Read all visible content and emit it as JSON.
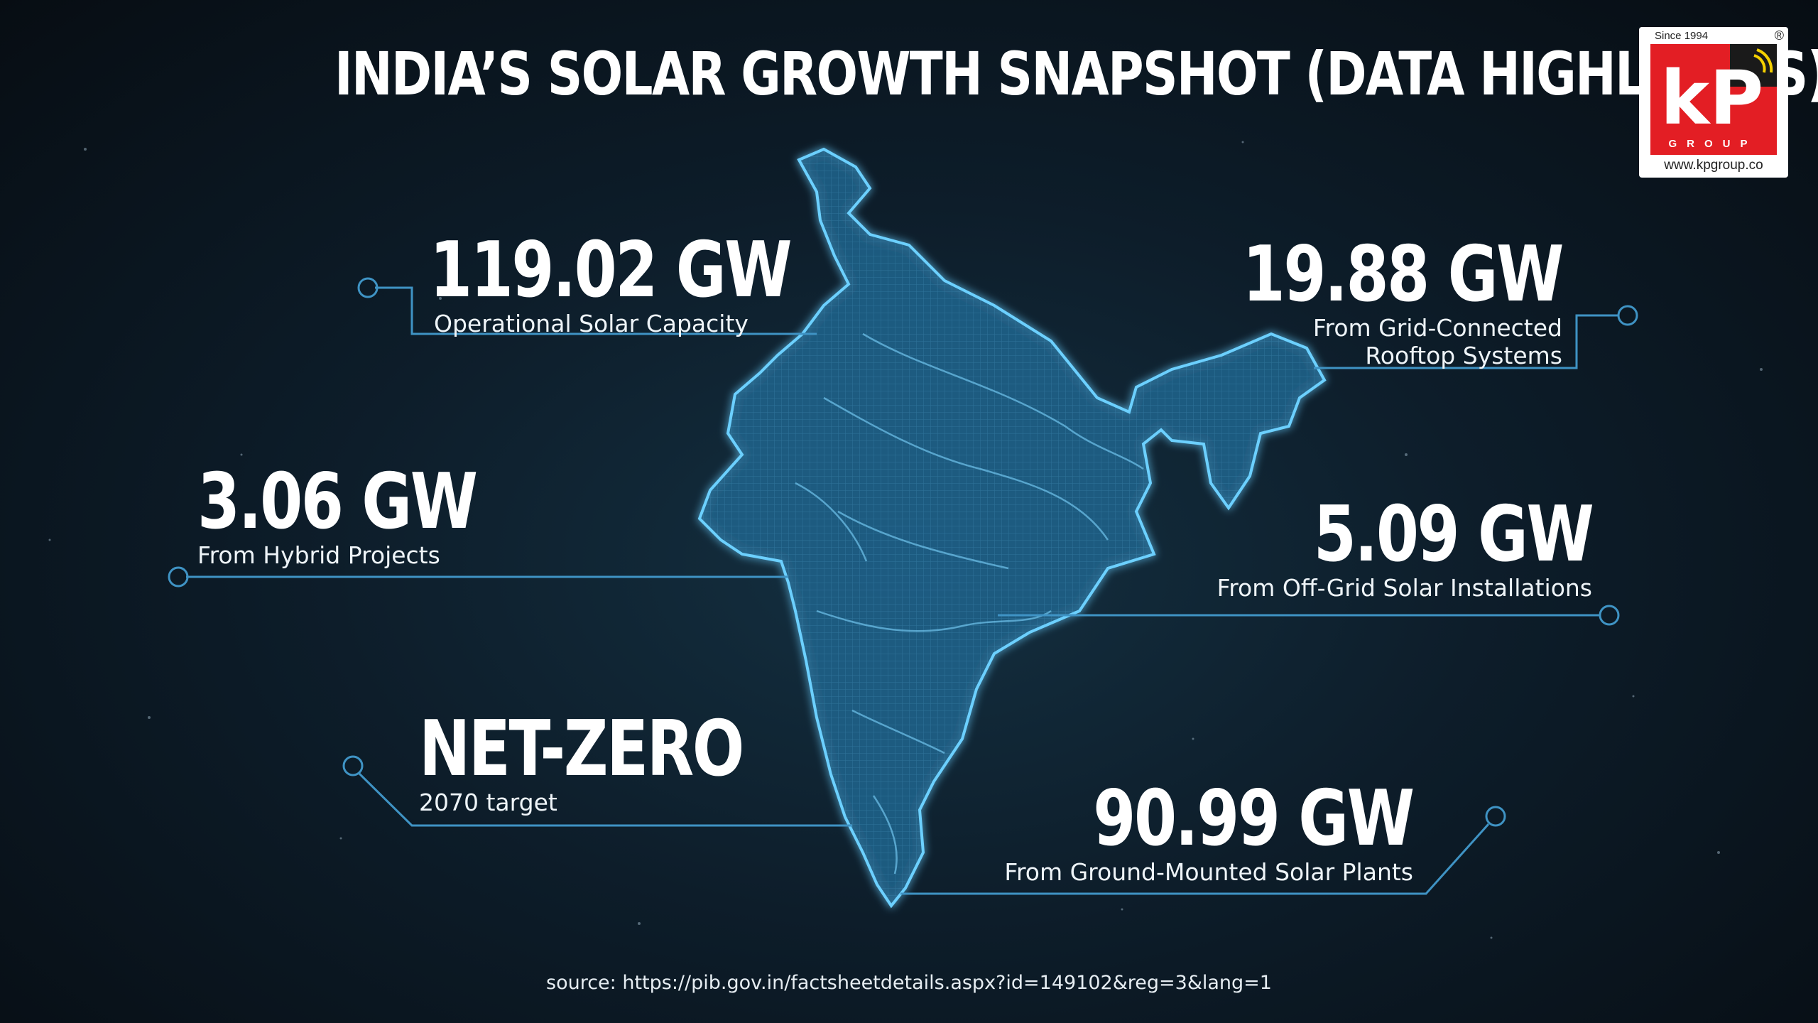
{
  "title": "INDIA’S SOLAR GROWTH SNAPSHOT (DATA HIGHLIGHTS)",
  "stats": [
    {
      "value": "119.02 GW",
      "caption": "Operational Solar Capacity"
    },
    {
      "value": "19.88 GW",
      "caption_line1": "From Grid-Connected",
      "caption_line2": "Rooftop Systems"
    },
    {
      "value": "3.06 GW",
      "caption": "From Hybrid Projects"
    },
    {
      "value": "5.09 GW",
      "caption": "From Off-Grid Solar Installations"
    },
    {
      "value": "NET-ZERO",
      "caption": "2070 target"
    },
    {
      "value": "90.99 GW",
      "caption": "From Ground-Mounted Solar Plants"
    }
  ],
  "source": "source: https://pib.gov.in/factsheetdetails.aspx?id=149102&reg=3&lang=1",
  "logo": {
    "since": "Since 1994",
    "registered": "®",
    "letters": "kP",
    "group": "GROUP",
    "url": "www.kpgroup.co"
  },
  "colors": {
    "map_fill": "#1f5f86",
    "map_glow": "#5cc6ff",
    "leader_line": "#3f93c4",
    "logo_red": "#e31e24"
  }
}
